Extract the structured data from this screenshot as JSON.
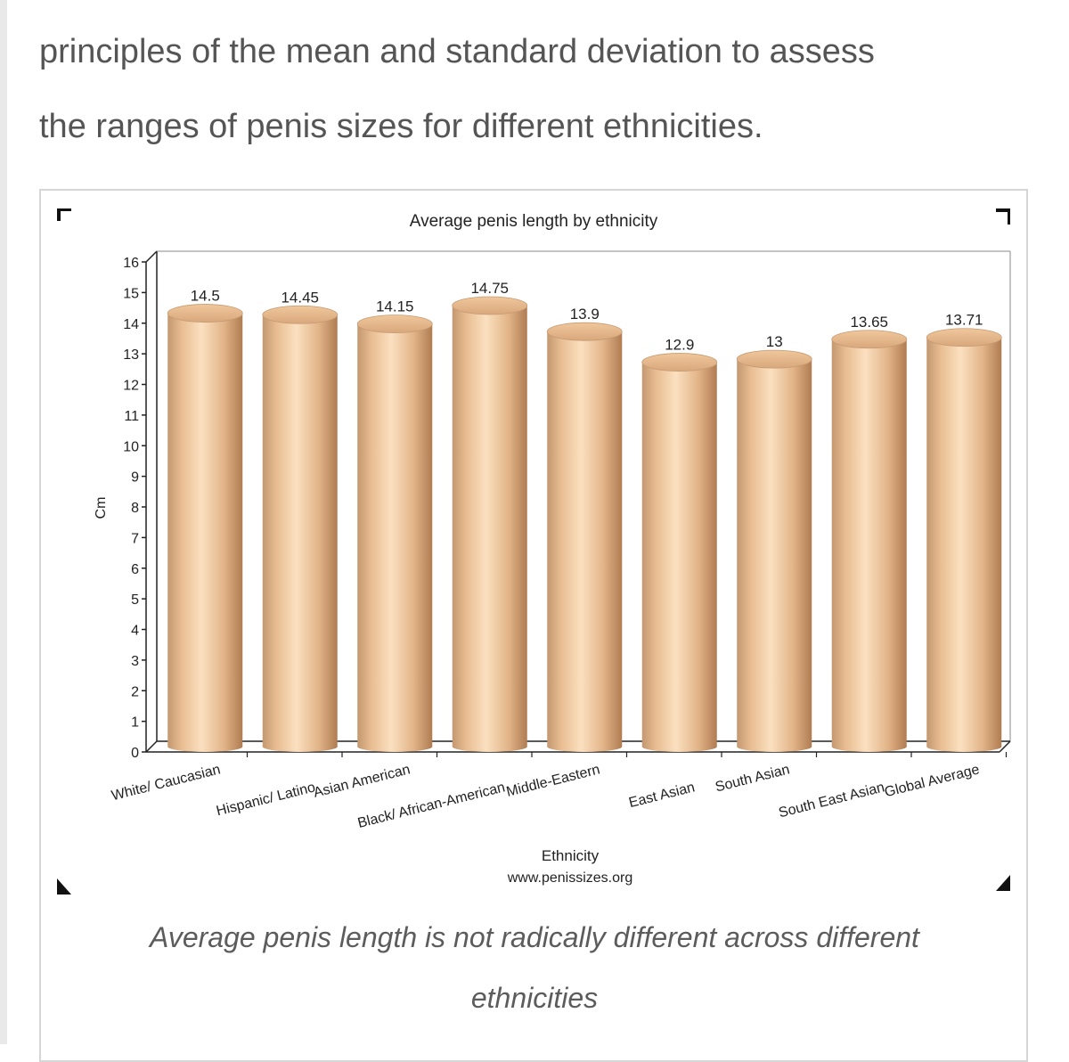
{
  "article": {
    "intro_line1": "principles of the mean and standard deviation to assess",
    "intro_line2": "the ranges of penis sizes for different ethnicities.",
    "caption_line1": "Average penis length is not radically different across different",
    "caption_line2": "ethnicities"
  },
  "colors": {
    "bar_mid": "#f7d2aa",
    "bar_edge": "#b88860",
    "text": "#333333"
  },
  "chart_data": {
    "type": "bar",
    "title": "Average penis length by ethnicity",
    "xlabel": "Ethnicity",
    "source": "www.penissizes.org",
    "ylabel": "Cm",
    "ylim": [
      0,
      16
    ],
    "yticks": [
      0,
      1,
      2,
      3,
      4,
      5,
      6,
      7,
      8,
      9,
      10,
      11,
      12,
      13,
      14,
      15,
      16
    ],
    "categories": [
      "White/ Caucasian",
      "Hispanic/ Latino",
      "Asian American",
      "Black/ African-American",
      "Middle-Eastern",
      "East Asian",
      "South Asian",
      "South East Asian",
      "Global Average"
    ],
    "values": [
      14.5,
      14.45,
      14.15,
      14.75,
      13.9,
      12.9,
      13,
      13.65,
      13.71
    ],
    "value_labels": [
      "14.5",
      "14.45",
      "14.15",
      "14.75",
      "13.9",
      "12.9",
      "13",
      "13.65",
      "13.71"
    ]
  }
}
